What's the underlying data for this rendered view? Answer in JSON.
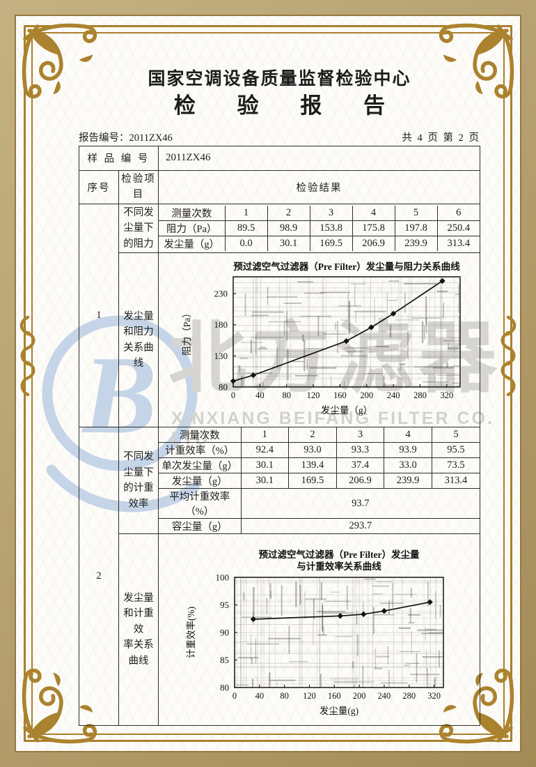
{
  "header": {
    "center_name": "国家空调设备质量监督检验中心",
    "report_title": "检  验  报  告",
    "report_no": "报告编号：2011ZX46",
    "page_info": "共 4 页 第 2 页"
  },
  "sample_row": {
    "label": "样 品 编 号",
    "value": "2011ZX46"
  },
  "columns": {
    "seq": "序号",
    "item": "检验项目",
    "result": "检验结果"
  },
  "section1": {
    "seq": "1",
    "item_top": "不同发尘量下\n的阻力",
    "item_bottom": "发尘量和阻力\n关系曲线",
    "table": {
      "rows": [
        {
          "label": "测量次数",
          "values": [
            "1",
            "2",
            "3",
            "4",
            "5",
            "6"
          ]
        },
        {
          "label": "阻力（Pa）",
          "values": [
            "89.5",
            "98.9",
            "153.8",
            "175.8",
            "197.8",
            "250.4"
          ]
        },
        {
          "label": "发尘量（g）",
          "values": [
            "0.0",
            "30.1",
            "169.5",
            "206.9",
            "239.9",
            "313.4"
          ]
        }
      ]
    }
  },
  "section2": {
    "seq": "2",
    "item_top": "不同发尘量下\n的计重效率",
    "item_bottom": "发尘量和计重效\n率关系曲线",
    "table": {
      "rows": [
        {
          "label": "测量次数",
          "values": [
            "1",
            "2",
            "3",
            "4",
            "5"
          ]
        },
        {
          "label": "计重效率（%）",
          "values": [
            "92.4",
            "93.0",
            "93.3",
            "93.9",
            "95.5"
          ]
        },
        {
          "label": "单次发尘量（g）",
          "values": [
            "30.1",
            "139.4",
            "37.4",
            "33.0",
            "73.5"
          ]
        },
        {
          "label": "发尘量（g）",
          "values": [
            "30.1",
            "169.5",
            "206.9",
            "239.9",
            "313.4"
          ]
        },
        {
          "label": "平均计重效率（%）",
          "value": "93.7"
        },
        {
          "label": "容尘量（g）",
          "value": "293.7"
        }
      ]
    }
  },
  "chart_data": [
    {
      "type": "line",
      "title": "预过滤空气过滤器（Pre Filter）发尘量与阻力关系曲线",
      "xlabel": "发尘量（g）",
      "ylabel": "阻力（Pa）",
      "x": [
        0,
        30.1,
        169.5,
        206.9,
        239.9,
        313.4
      ],
      "y": [
        89.5,
        98.9,
        153.8,
        175.8,
        197.8,
        250.4
      ],
      "xlim": [
        0,
        340
      ],
      "ylim": [
        80,
        257
      ],
      "xticks": [
        0,
        40,
        80,
        120,
        160,
        200,
        240,
        280,
        320
      ],
      "yticks": [
        80,
        130,
        180,
        230
      ],
      "marker": "diamond",
      "grid": "dense-photocopy",
      "legend_position": "none"
    },
    {
      "type": "line",
      "title": [
        "预过滤空气过滤器（Pre Filter）发尘量",
        "与计重效率关系曲线"
      ],
      "xlabel": "发尘量(g)",
      "ylabel": "计重效率(%)",
      "x": [
        30.1,
        169.5,
        206.9,
        239.9,
        313.4
      ],
      "y": [
        92.4,
        93.0,
        93.3,
        93.9,
        95.5
      ],
      "xlim": [
        0,
        335
      ],
      "ylim": [
        80,
        100
      ],
      "xticks": [
        0,
        40,
        80,
        120,
        160,
        200,
        240,
        280,
        320
      ],
      "yticks": [
        80,
        85,
        90,
        95,
        100
      ],
      "marker": "diamond",
      "grid": "dense-photocopy",
      "legend_position": "none"
    }
  ],
  "watermark": {
    "logo_letter": "B",
    "cn_text": "北方滤器",
    "en_text": "XINXIANG BEIFANG FILTER CO. LTD"
  },
  "colors": {
    "frame_gold": "#a8802e",
    "band_tan": "#b39d6c",
    "ink": "#1c1c1c",
    "watermark_blue": "#c5d5e7",
    "watermark_gray": "#d6d4d0"
  }
}
